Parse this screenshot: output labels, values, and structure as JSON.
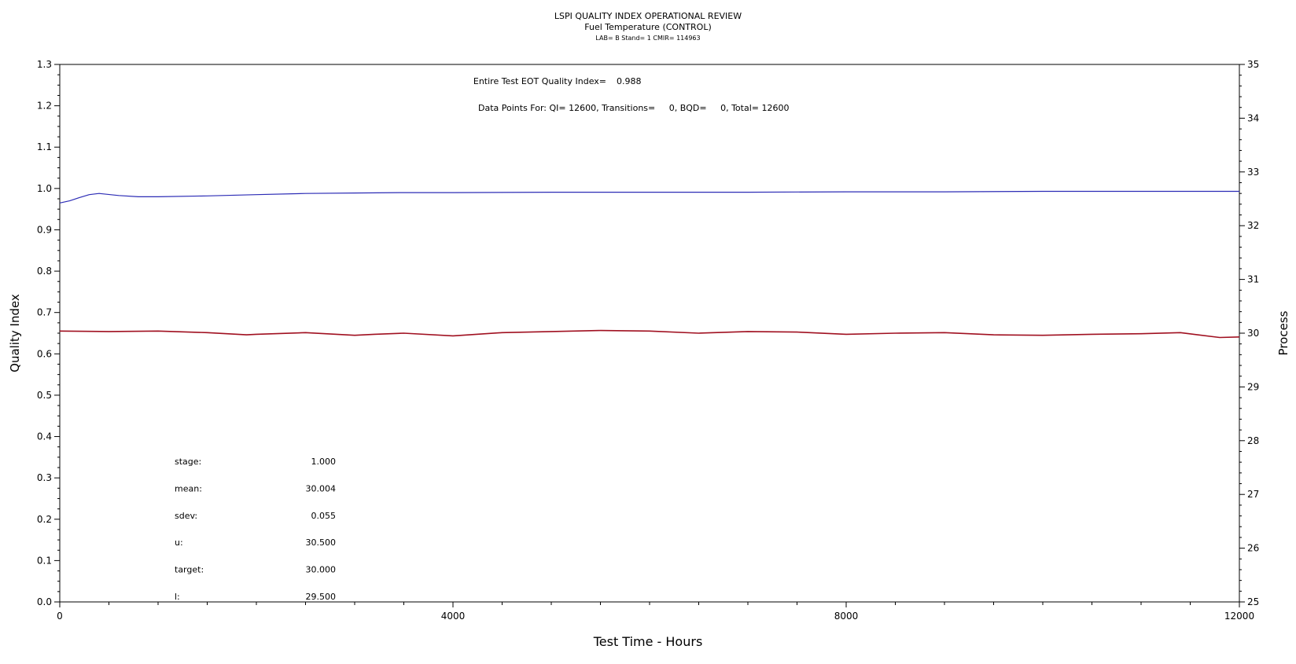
{
  "header": {
    "title": "LSPI QUALITY INDEX OPERATIONAL REVIEW",
    "subtitle": "Fuel Temperature (CONTROL)",
    "info": "LAB= B Stand= 1 CMIR= 114963"
  },
  "annotations": {
    "eot_label": "Entire Test EOT Quality Index=",
    "eot_value": "0.988",
    "data_points": "Data Points For: QI= 12600, Transitions=     0, BQD=     0, Total= 12600"
  },
  "stats": [
    {
      "label": "stage:",
      "value": "1.000"
    },
    {
      "label": "mean:",
      "value": "30.004"
    },
    {
      "label": "sdev:",
      "value": "0.055"
    },
    {
      "label": "u:",
      "value": "30.500"
    },
    {
      "label": "target:",
      "value": "30.000"
    },
    {
      "label": "l:",
      "value": "29.500"
    }
  ],
  "colors": {
    "quality_index_line": "#2b2bb5",
    "process_line": "#a01020",
    "axis": "#000000"
  },
  "chart_data": {
    "type": "line",
    "xlabel": "Test Time - Hours",
    "ylabel_left": "Quality Index",
    "ylabel_right": "Process",
    "xlim": [
      0,
      12000
    ],
    "ylim_left": [
      0,
      1.3
    ],
    "ylim_right": [
      25,
      35
    ],
    "x_ticks": [
      "0",
      "4000",
      "8000",
      "12000"
    ],
    "y_ticks_left": [
      "0.0",
      "0.1",
      "0.2",
      "0.3",
      "0.4",
      "0.5",
      "0.6",
      "0.7",
      "0.8",
      "0.9",
      "1.0",
      "1.1",
      "1.2",
      "1.3"
    ],
    "y_ticks_right": [
      "25",
      "26",
      "27",
      "28",
      "29",
      "30",
      "31",
      "32",
      "33",
      "34",
      "35"
    ],
    "grid": false,
    "series": [
      {
        "axis": "left",
        "x": [
          0,
          100,
          200,
          300,
          400,
          600,
          800,
          1000,
          1500,
          2000,
          2500,
          3000,
          3500,
          4000,
          5000,
          6000,
          7000,
          8000,
          9000,
          10000,
          11000,
          12000
        ],
        "values": [
          0.965,
          0.97,
          0.978,
          0.985,
          0.988,
          0.983,
          0.98,
          0.98,
          0.982,
          0.985,
          0.988,
          0.989,
          0.99,
          0.99,
          0.991,
          0.991,
          0.991,
          0.992,
          0.992,
          0.993,
          0.993,
          0.993
        ]
      },
      {
        "axis": "right",
        "x": [
          0,
          500,
          1000,
          1500,
          1900,
          2000,
          2500,
          3000,
          3200,
          3500,
          4000,
          4500,
          5000,
          5500,
          6000,
          6500,
          7000,
          7500,
          8000,
          8500,
          9000,
          9500,
          10000,
          10500,
          11000,
          11400,
          11800,
          12000
        ],
        "values": [
          30.04,
          30.03,
          30.04,
          30.01,
          29.97,
          29.98,
          30.01,
          29.96,
          29.98,
          30.0,
          29.95,
          30.01,
          30.03,
          30.05,
          30.04,
          30.0,
          30.03,
          30.02,
          29.98,
          30.0,
          30.01,
          29.97,
          29.96,
          29.98,
          29.99,
          30.01,
          29.92,
          29.93
        ]
      }
    ]
  }
}
